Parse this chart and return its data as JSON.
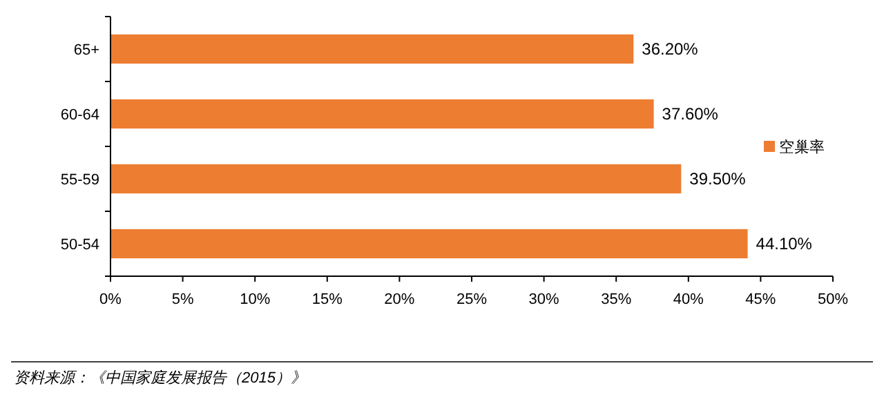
{
  "chart_data": {
    "type": "bar",
    "orientation": "horizontal",
    "categories": [
      "65+",
      "60-64",
      "55-59",
      "50-54"
    ],
    "series": [
      {
        "name": "空巢率",
        "color": "#ed7d31",
        "values": [
          36.2,
          37.6,
          39.5,
          44.1
        ],
        "value_labels": [
          "36.20%",
          "37.60%",
          "39.50%",
          "44.10%"
        ]
      }
    ],
    "xlim": [
      0,
      50
    ],
    "xticks": [
      {
        "value": 0,
        "label": "0%"
      },
      {
        "value": 5,
        "label": "5%"
      },
      {
        "value": 10,
        "label": "10%"
      },
      {
        "value": 15,
        "label": "15%"
      },
      {
        "value": 20,
        "label": "20%"
      },
      {
        "value": 25,
        "label": "25%"
      },
      {
        "value": 30,
        "label": "30%"
      },
      {
        "value": 35,
        "label": "35%"
      },
      {
        "value": 40,
        "label": "40%"
      },
      {
        "value": 45,
        "label": "45%"
      },
      {
        "value": 50,
        "label": "50%"
      }
    ],
    "legend": "right",
    "grid": false,
    "annotations": [
      "资料来源：《中国家庭发展报告（2015）》"
    ]
  }
}
